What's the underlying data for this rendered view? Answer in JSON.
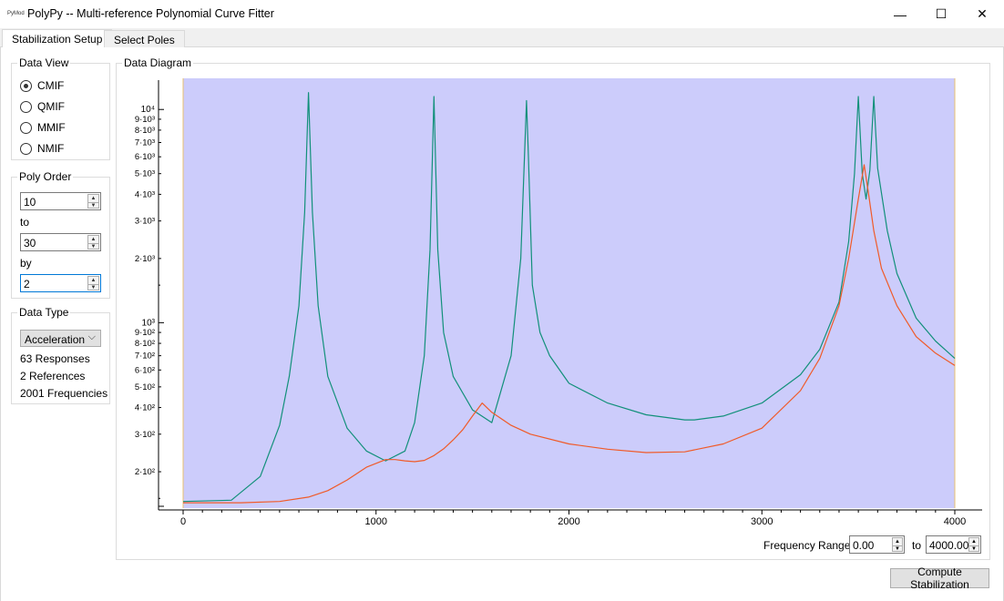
{
  "window": {
    "icon_text": "PyMod",
    "title": "PolyPy -- Multi-reference Polynomial Curve Fitter",
    "minimize_glyph": "—",
    "maximize_glyph": "☐",
    "close_glyph": "✕"
  },
  "tabs": [
    {
      "label": "Stabilization Setup",
      "active": true
    },
    {
      "label": "Select Poles",
      "active": false
    }
  ],
  "data_view": {
    "title": "Data View",
    "options": [
      {
        "label": "CMIF",
        "checked": true
      },
      {
        "label": "QMIF",
        "checked": false
      },
      {
        "label": "MMIF",
        "checked": false
      },
      {
        "label": "NMIF",
        "checked": false
      }
    ]
  },
  "poly_order": {
    "title": "Poly Order",
    "from_value": "10",
    "to_label": "to",
    "to_value": "30",
    "by_label": "by",
    "by_value": "2"
  },
  "data_type": {
    "title": "Data Type",
    "selected": "Acceleration",
    "responses": "63 Responses",
    "references": "2 References",
    "frequencies": "2001 Frequencies"
  },
  "diagram": {
    "title": "Data Diagram"
  },
  "frequency_range": {
    "label": "Frequency Range:",
    "from_value": "0.00",
    "to_label": "to",
    "to_value": "4000.00"
  },
  "compute_button": "Compute Stabilization",
  "icons": {
    "spin_up": "▲",
    "spin_down": "▼",
    "combo_chevron": "⌵"
  },
  "chart_data": {
    "type": "line",
    "xlabel": "",
    "ylabel": "",
    "y_scale": "log",
    "xlim": [
      0,
      4000
    ],
    "ylim": [
      135,
      14000
    ],
    "x_ticks": [
      0,
      1000,
      2000,
      3000,
      4000
    ],
    "y_major_ticks": [
      {
        "value": 1000,
        "label": "10³"
      },
      {
        "value": 10000,
        "label": "10⁴"
      }
    ],
    "y_minor_ticks": [
      {
        "value": 200,
        "label": "2·10²"
      },
      {
        "value": 300,
        "label": "3·10²"
      },
      {
        "value": 400,
        "label": "4·10²"
      },
      {
        "value": 500,
        "label": "5·10²"
      },
      {
        "value": 600,
        "label": "6·10²"
      },
      {
        "value": 700,
        "label": "7·10²"
      },
      {
        "value": 800,
        "label": "8·10²"
      },
      {
        "value": 900,
        "label": "9·10²"
      },
      {
        "value": 2000,
        "label": "2·10³"
      },
      {
        "value": 3000,
        "label": "3·10³"
      },
      {
        "value": 4000,
        "label": "4·10³"
      },
      {
        "value": 5000,
        "label": "5·10³"
      },
      {
        "value": 6000,
        "label": "6·10³"
      },
      {
        "value": 7000,
        "label": "7·10³"
      },
      {
        "value": 8000,
        "label": "8·10³"
      },
      {
        "value": 9000,
        "label": "9·10³"
      }
    ],
    "background_color": "#ccccfb",
    "series": [
      {
        "color": "#12907a",
        "x": [
          0,
          250,
          400,
          500,
          550,
          600,
          630,
          650,
          670,
          700,
          750,
          850,
          950,
          1050,
          1150,
          1200,
          1250,
          1280,
          1300,
          1320,
          1350,
          1400,
          1500,
          1600,
          1700,
          1750,
          1780,
          1790,
          1810,
          1850,
          1900,
          2000,
          2200,
          2400,
          2600,
          2650,
          2800,
          3000,
          3200,
          3300,
          3400,
          3450,
          3480,
          3500,
          3520,
          3540,
          3560,
          3580,
          3600,
          3650,
          3700,
          3800,
          3900,
          4000
        ],
        "y": [
          145,
          147,
          190,
          330,
          560,
          1200,
          3300,
          12000,
          3300,
          1200,
          560,
          320,
          250,
          225,
          250,
          340,
          700,
          2200,
          11500,
          2200,
          900,
          560,
          390,
          340,
          700,
          2000,
          11000,
          6000,
          1500,
          900,
          700,
          520,
          420,
          370,
          350,
          350,
          365,
          420,
          570,
          750,
          1250,
          2400,
          5000,
          11500,
          5000,
          3800,
          5200,
          11500,
          5300,
          2700,
          1700,
          1050,
          820,
          680
        ]
      },
      {
        "color": "#f05a28",
        "x": [
          0,
          300,
          500,
          650,
          750,
          850,
          950,
          1050,
          1100,
          1150,
          1200,
          1250,
          1300,
          1350,
          1400,
          1450,
          1500,
          1550,
          1600,
          1700,
          1800,
          2000,
          2200,
          2400,
          2600,
          2800,
          3000,
          3200,
          3300,
          3400,
          3450,
          3500,
          3530,
          3550,
          3580,
          3620,
          3700,
          3800,
          3900,
          4000
        ],
        "y": [
          143,
          143,
          145,
          152,
          163,
          183,
          210,
          228,
          228,
          225,
          223,
          226,
          238,
          256,
          282,
          315,
          365,
          420,
          380,
          330,
          300,
          270,
          255,
          246,
          248,
          270,
          320,
          480,
          680,
          1200,
          2000,
          3800,
          5500,
          4200,
          2700,
          1800,
          1200,
          860,
          720,
          630
        ]
      }
    ]
  }
}
